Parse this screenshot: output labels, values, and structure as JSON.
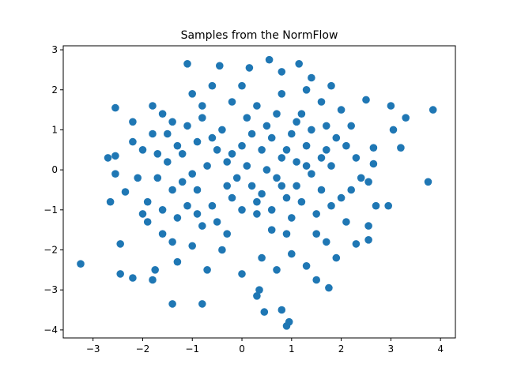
{
  "chart_data": {
    "type": "scatter",
    "title": "Samples from the NormFlow",
    "xlabel": "",
    "ylabel": "",
    "xlim": [
      -3.6,
      4.3
    ],
    "ylim": [
      -4.2,
      3.1
    ],
    "xticks": [
      -3,
      -2,
      -1,
      0,
      1,
      2,
      3,
      4
    ],
    "yticks": [
      -4,
      -3,
      -2,
      -1,
      0,
      1,
      2,
      3
    ],
    "xtick_labels": [
      "−3",
      "−2",
      "−1",
      "0",
      "1",
      "2",
      "3",
      "4"
    ],
    "ytick_labels": [
      "−4",
      "−3",
      "−2",
      "−1",
      "0",
      "1",
      "2",
      "3"
    ],
    "grid": false,
    "legend": "none",
    "colors": {
      "marker": "#1f77b4",
      "axes": "#000000",
      "background": "#ffffff"
    },
    "series": [
      {
        "points": [
          [
            -3.25,
            -2.35
          ],
          [
            -2.7,
            0.3
          ],
          [
            -2.65,
            -0.8
          ],
          [
            -2.55,
            1.55
          ],
          [
            -2.55,
            0.35
          ],
          [
            -2.55,
            -0.1
          ],
          [
            -2.45,
            -1.85
          ],
          [
            -2.45,
            -2.6
          ],
          [
            -2.2,
            -2.7
          ],
          [
            -2.35,
            -0.55
          ],
          [
            -2.2,
            1.2
          ],
          [
            -1.8,
            -2.75
          ],
          [
            -1.75,
            -2.5
          ],
          [
            -1.4,
            -3.35
          ],
          [
            -0.8,
            -3.35
          ],
          [
            0.45,
            -3.55
          ],
          [
            0.95,
            -3.8
          ],
          [
            0.9,
            -3.9
          ],
          [
            0.8,
            -3.5
          ],
          [
            0.35,
            -3.0
          ],
          [
            0.3,
            -3.15
          ],
          [
            -1.1,
            2.65
          ],
          [
            -0.45,
            2.6
          ],
          [
            0.15,
            2.55
          ],
          [
            0.55,
            2.75
          ],
          [
            0.8,
            2.45
          ],
          [
            1.15,
            2.65
          ],
          [
            1.4,
            2.3
          ],
          [
            1.8,
            2.1
          ],
          [
            2.5,
            1.75
          ],
          [
            3.0,
            1.6
          ],
          [
            3.3,
            1.3
          ],
          [
            3.85,
            1.5
          ],
          [
            3.05,
            1.0
          ],
          [
            3.2,
            0.55
          ],
          [
            2.65,
            0.55
          ],
          [
            3.75,
            -0.3
          ],
          [
            2.95,
            -0.9
          ],
          [
            2.7,
            -0.9
          ],
          [
            2.55,
            -1.4
          ],
          [
            2.55,
            -1.75
          ],
          [
            2.3,
            -1.85
          ],
          [
            1.75,
            -2.95
          ],
          [
            1.5,
            -2.75
          ],
          [
            2.65,
            0.15
          ],
          [
            2.55,
            -0.3
          ],
          [
            -1.2,
            0.4
          ],
          [
            -1.5,
            0.9
          ],
          [
            -0.9,
            -0.5
          ],
          [
            -0.6,
            0.8
          ],
          [
            -1.7,
            -0.2
          ],
          [
            -1.3,
            -1.2
          ],
          [
            -0.8,
            1.3
          ],
          [
            -0.3,
            0.2
          ],
          [
            -1.1,
            -0.9
          ],
          [
            -0.5,
            -1.3
          ],
          [
            0.0,
            0.6
          ],
          [
            0.2,
            -0.4
          ],
          [
            0.5,
            1.1
          ],
          [
            0.8,
            0.3
          ],
          [
            0.6,
            -1.0
          ],
          [
            1.1,
            -0.4
          ],
          [
            1.3,
            0.6
          ],
          [
            1.5,
            -1.1
          ],
          [
            1.8,
            0.1
          ],
          [
            1.2,
            1.4
          ],
          [
            0.9,
            -1.6
          ],
          [
            1.6,
            -0.5
          ],
          [
            2.0,
            -0.7
          ],
          [
            1.9,
            0.8
          ],
          [
            0.3,
            1.6
          ],
          [
            -0.2,
            1.7
          ],
          [
            -1.0,
            1.9
          ],
          [
            -1.6,
            1.4
          ],
          [
            -2.0,
            0.5
          ],
          [
            -1.9,
            -0.8
          ],
          [
            -1.6,
            -1.6
          ],
          [
            -1.0,
            -1.9
          ],
          [
            -0.4,
            -2.0
          ],
          [
            0.4,
            -2.2
          ],
          [
            1.0,
            -2.1
          ],
          [
            1.7,
            -1.8
          ],
          [
            2.1,
            -1.3
          ],
          [
            2.3,
            0.3
          ],
          [
            2.2,
            1.1
          ],
          [
            1.6,
            1.7
          ],
          [
            0.8,
            1.9
          ],
          [
            -0.6,
            2.1
          ],
          [
            -1.4,
            -0.5
          ],
          [
            -0.2,
            -0.7
          ],
          [
            0.1,
            0.1
          ],
          [
            0.7,
            -0.2
          ],
          [
            1.0,
            0.9
          ],
          [
            -0.7,
            0.1
          ],
          [
            -1.2,
            -0.3
          ],
          [
            -0.9,
            0.7
          ],
          [
            0.4,
            0.5
          ],
          [
            0.9,
            -0.7
          ],
          [
            1.4,
            -0.1
          ],
          [
            1.1,
            0.2
          ],
          [
            -0.3,
            -1.6
          ],
          [
            0.6,
            -1.5
          ],
          [
            -1.5,
            0.2
          ],
          [
            -1.8,
            0.9
          ],
          [
            -2.1,
            -0.2
          ],
          [
            -1.9,
            -1.3
          ],
          [
            -1.3,
            -2.3
          ],
          [
            -0.7,
            -2.5
          ],
          [
            0.0,
            -2.6
          ],
          [
            0.7,
            -2.5
          ],
          [
            1.3,
            -2.4
          ],
          [
            1.9,
            -2.2
          ],
          [
            2.4,
            -0.2
          ],
          [
            2.0,
            1.5
          ],
          [
            1.3,
            2.0
          ],
          [
            0.0,
            2.1
          ],
          [
            -0.8,
            1.6
          ],
          [
            -1.8,
            1.6
          ],
          [
            -2.2,
            0.7
          ],
          [
            -2.0,
            -1.1
          ],
          [
            -1.4,
            -1.8
          ],
          [
            0.3,
            -1.1
          ],
          [
            0.5,
            0.0
          ],
          [
            -0.1,
            -0.2
          ],
          [
            1.7,
            0.5
          ],
          [
            1.4,
            1.0
          ],
          [
            -0.4,
            1.0
          ],
          [
            -1.1,
            1.1
          ],
          [
            0.2,
            0.9
          ],
          [
            0.7,
            1.4
          ],
          [
            1.0,
            -1.2
          ],
          [
            1.5,
            -1.6
          ],
          [
            -0.8,
            -1.4
          ],
          [
            -1.6,
            -1.0
          ],
          [
            -0.5,
            0.5
          ],
          [
            0.0,
            -1.0
          ],
          [
            0.4,
            -0.6
          ],
          [
            0.9,
            0.5
          ],
          [
            1.2,
            -0.8
          ],
          [
            1.6,
            0.3
          ],
          [
            -1.0,
            -0.1
          ],
          [
            -1.3,
            0.6
          ],
          [
            -0.6,
            -0.9
          ],
          [
            0.1,
            1.3
          ],
          [
            0.6,
            0.8
          ],
          [
            1.1,
            1.2
          ],
          [
            1.8,
            -0.9
          ],
          [
            2.2,
            -0.5
          ],
          [
            -0.2,
            0.4
          ],
          [
            -0.9,
            -1.1
          ],
          [
            -1.7,
            0.4
          ],
          [
            -1.4,
            1.2
          ],
          [
            -0.3,
            -0.4
          ],
          [
            0.3,
            -0.8
          ],
          [
            0.8,
            -0.4
          ],
          [
            1.3,
            0.1
          ],
          [
            1.7,
            1.1
          ],
          [
            2.1,
            0.6
          ]
        ]
      }
    ]
  }
}
